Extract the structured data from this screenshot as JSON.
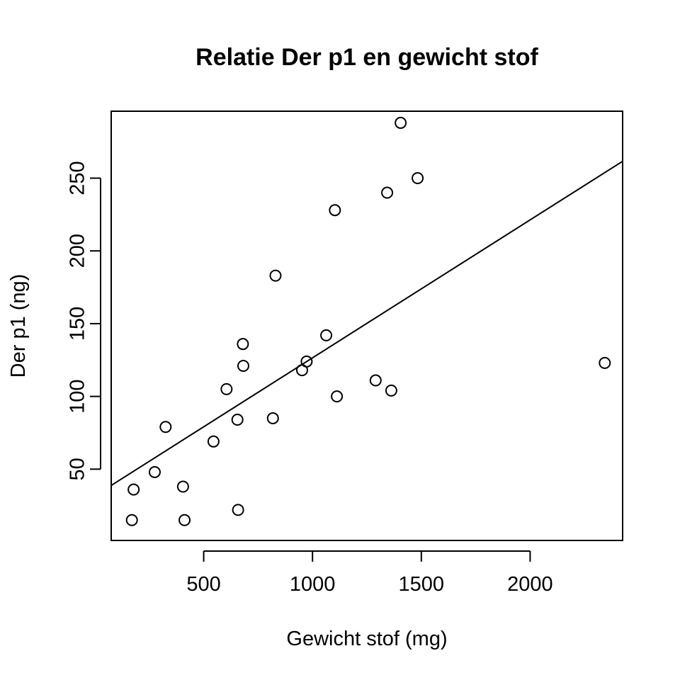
{
  "chart_data": {
    "type": "scatter",
    "title": "Relatie Der p1 en gewicht stof",
    "xlabel": "Gewicht stof (mg)",
    "ylabel": "Der p1 (ng)",
    "xlim": [
      75,
      2425
    ],
    "ylim": [
      1,
      296
    ],
    "x_ticks": [
      500,
      1000,
      1500,
      2000
    ],
    "y_ticks": [
      50,
      100,
      150,
      200,
      250
    ],
    "grid": false,
    "legend": "none",
    "series": [
      {
        "points": [
          {
            "x": 170,
            "y": 15
          },
          {
            "x": 178,
            "y": 36
          },
          {
            "x": 275,
            "y": 48
          },
          {
            "x": 325,
            "y": 79
          },
          {
            "x": 405,
            "y": 38
          },
          {
            "x": 412,
            "y": 15
          },
          {
            "x": 545,
            "y": 69
          },
          {
            "x": 605,
            "y": 105
          },
          {
            "x": 655,
            "y": 84
          },
          {
            "x": 658,
            "y": 22
          },
          {
            "x": 680,
            "y": 136
          },
          {
            "x": 682,
            "y": 121
          },
          {
            "x": 818,
            "y": 85
          },
          {
            "x": 830,
            "y": 183
          },
          {
            "x": 952,
            "y": 118
          },
          {
            "x": 973,
            "y": 124
          },
          {
            "x": 1063,
            "y": 142
          },
          {
            "x": 1103,
            "y": 228
          },
          {
            "x": 1112,
            "y": 100
          },
          {
            "x": 1290,
            "y": 111
          },
          {
            "x": 1343,
            "y": 240
          },
          {
            "x": 1362,
            "y": 104
          },
          {
            "x": 1405,
            "y": 288
          },
          {
            "x": 1483,
            "y": 250
          },
          {
            "x": 2343,
            "y": 123
          }
        ]
      }
    ],
    "regression_line": {
      "intercept": 31.7,
      "slope": 0.0948
    }
  }
}
